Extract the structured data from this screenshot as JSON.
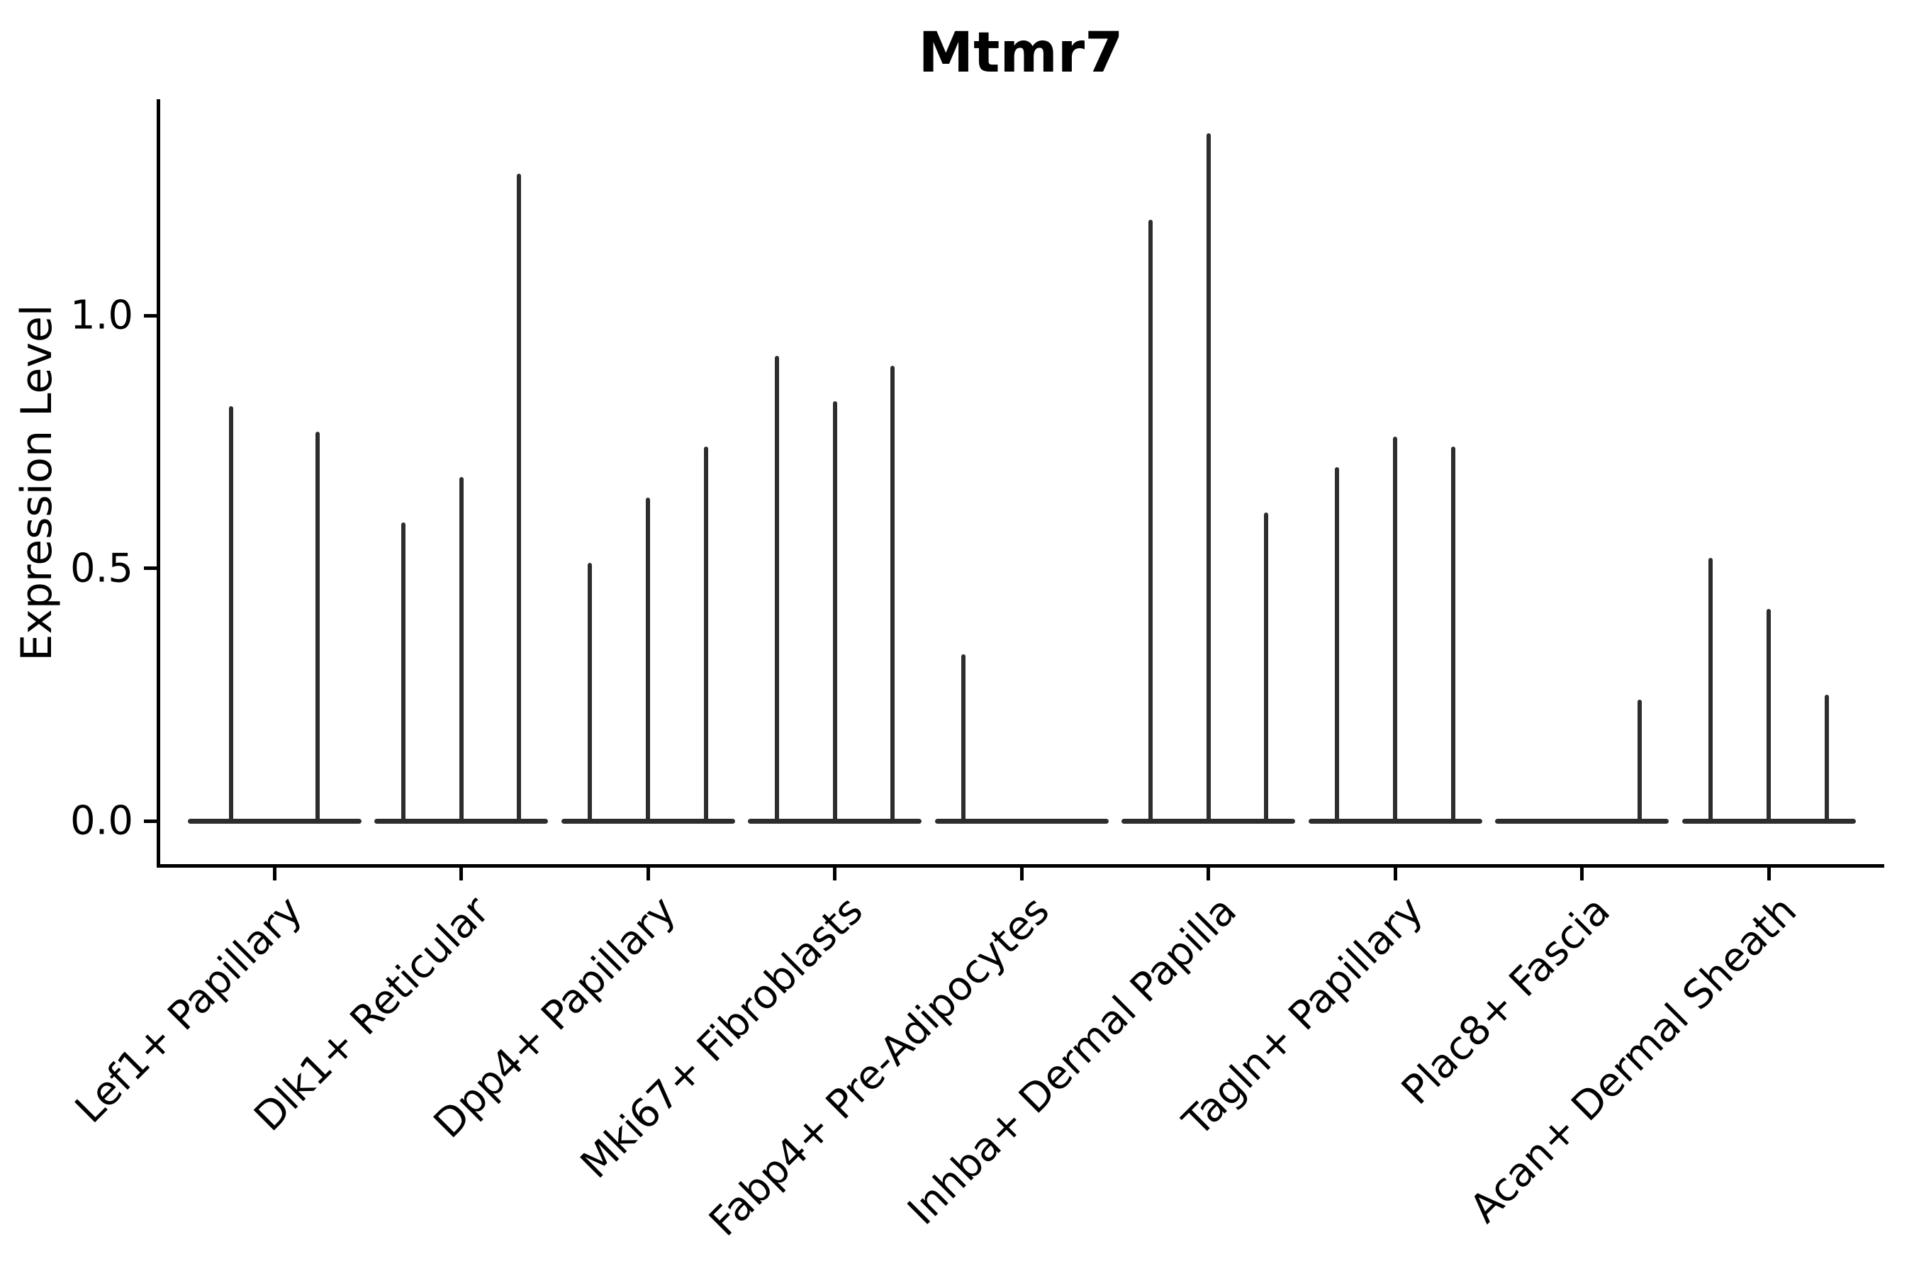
{
  "figure": {
    "title": "Mtmr7",
    "ylabel": "Expression Level",
    "background_color": "#ffffff",
    "axis_color": "#000000",
    "violin_color": "#2d2d2d"
  },
  "chart_data": {
    "type": "violin",
    "title": "Mtmr7",
    "xlabel": "",
    "ylabel": "Expression Level",
    "ylim": [
      0.0,
      1.43
    ],
    "yticks": [
      "0.0",
      "0.5",
      "1.0"
    ],
    "ytick_values": [
      0.0,
      0.5,
      1.0
    ],
    "grid": false,
    "legend": "none",
    "categories": [
      "Lef1+ Papillary",
      "Dlk1+ Reticular",
      "Dpp4+ Papillary",
      "Mki67+ Fibroblasts",
      "Fabp4+ Pre-Adipocytes",
      "Inhba+ Dermal Papilla",
      "Tagln+ Papillary",
      "Plac8+ Fascia",
      "Acan+ Dermal Sheath"
    ],
    "groups": [
      {
        "label": "Lef1+ Papillary",
        "spike_maxima": [
          0.82,
          0.77
        ]
      },
      {
        "label": "Dlk1+ Reticular",
        "spike_maxima": [
          0.59,
          0.68,
          1.28
        ]
      },
      {
        "label": "Dpp4+ Papillary",
        "spike_maxima": [
          0.51,
          0.64,
          0.74
        ]
      },
      {
        "label": "Mki67+ Fibroblasts",
        "spike_maxima": [
          0.92,
          0.83,
          0.9
        ]
      },
      {
        "label": "Fabp4+ Pre-Adipocytes",
        "spike_maxima": [
          0.33,
          0.0,
          0.0
        ]
      },
      {
        "label": "Inhba+ Dermal Papilla",
        "spike_maxima": [
          1.19,
          1.36,
          0.61
        ]
      },
      {
        "label": "Tagln+ Papillary",
        "spike_maxima": [
          0.7,
          0.76,
          0.74
        ]
      },
      {
        "label": "Plac8+ Fascia",
        "spike_maxima": [
          0.0,
          0.0,
          0.24
        ]
      },
      {
        "label": "Acan+ Dermal Sheath",
        "spike_maxima": [
          0.52,
          0.42,
          0.25
        ]
      }
    ],
    "note": "Violin bodies are flattened at expression 0; each narrow vertical spike rises to the per-violin maximum expression listed in spike_maxima."
  }
}
